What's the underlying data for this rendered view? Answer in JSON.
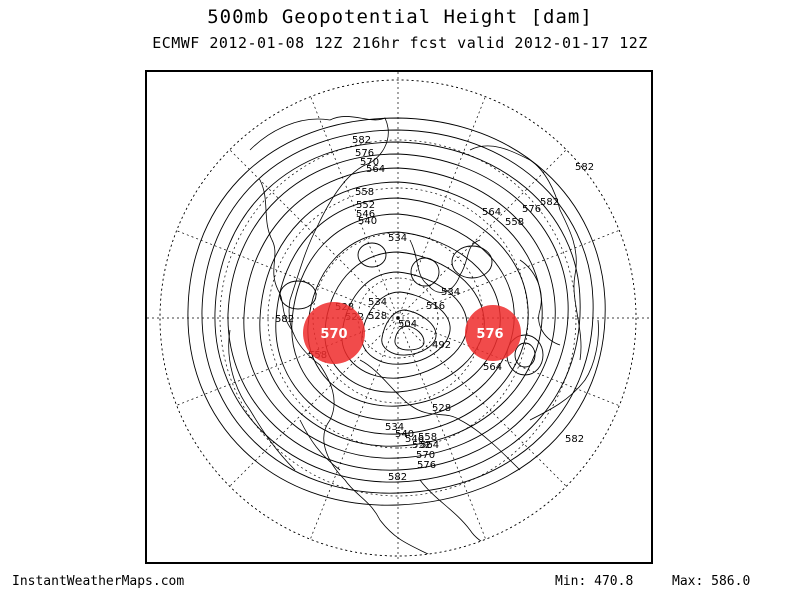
{
  "title": "500mb Geopotential Height [dam]",
  "subtitle": "ECMWF 2012-01-08 12Z 216hr fcst valid 2012-01-17 12Z",
  "footer": {
    "credit": "InstantWeatherMaps.com",
    "min_label": "Min:",
    "min_value": "470.8",
    "max_label": "Max:",
    "max_value": "586.0"
  },
  "highlights": [
    {
      "label": "570",
      "color": "#ee2b2b"
    },
    {
      "label": "576",
      "color": "#ee2b2b"
    }
  ],
  "contour_labels": [
    "582",
    "576",
    "570",
    "564",
    "558",
    "552",
    "546",
    "540",
    "534",
    "528",
    "522",
    "528",
    "534",
    "516",
    "504",
    "492",
    "558",
    "534",
    "564",
    "558",
    "576",
    "582",
    "582",
    "564",
    "528",
    "534",
    "540",
    "546",
    "552",
    "558",
    "564",
    "570",
    "576",
    "582",
    "582",
    "582"
  ],
  "colors": {
    "highlight": "#ee2b2b",
    "contour": "#000000",
    "graticule": "#000000"
  }
}
